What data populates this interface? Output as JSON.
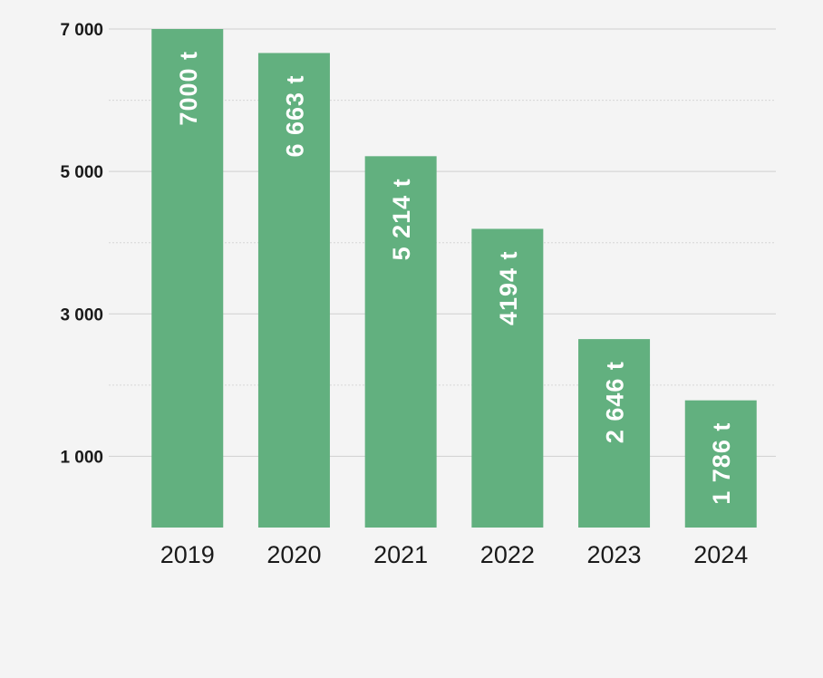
{
  "chart_data": {
    "type": "bar",
    "categories": [
      "2019",
      "2020",
      "2021",
      "2022",
      "2023",
      "2024"
    ],
    "values": [
      7000,
      6663,
      5214,
      4194,
      2646,
      1786
    ],
    "data_labels": [
      "7000 t",
      "6 663 t",
      "5 214 t",
      "4194 t",
      "2 646 t",
      "1 786 t"
    ],
    "title": "",
    "xlabel": "",
    "ylabel": "",
    "ylim": [
      0,
      7000
    ],
    "yticks": [
      {
        "value": 1000,
        "label": "1 000"
      },
      {
        "value": 3000,
        "label": "3 000"
      },
      {
        "value": 5000,
        "label": "5 000"
      },
      {
        "value": 7000,
        "label": "7 000"
      }
    ],
    "minor_gridlines": [
      2000,
      4000,
      6000
    ],
    "grid": true,
    "legend": "none",
    "bar_color": "#62b07f"
  }
}
